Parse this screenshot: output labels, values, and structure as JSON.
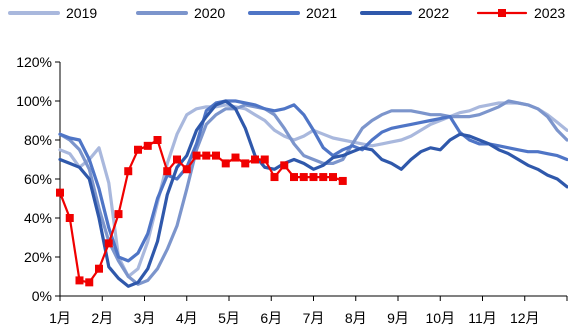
{
  "chart_data": {
    "type": "line",
    "title": "",
    "xlabel": "",
    "ylabel": "",
    "ylim": [
      0,
      120
    ],
    "y_tick_labels": [
      "0%",
      "20%",
      "40%",
      "60%",
      "80%",
      "100%",
      "120%"
    ],
    "y_tick_values": [
      0,
      20,
      40,
      60,
      80,
      100,
      120
    ],
    "x_tick_labels": [
      "1月",
      "2月",
      "3月",
      "4月",
      "5月",
      "6月",
      "7月",
      "8月",
      "9月",
      "10月",
      "11月",
      "12月"
    ],
    "x_unit": "week",
    "xlim": [
      1,
      53
    ],
    "legend_position": "top",
    "grid": false,
    "series": [
      {
        "name": "2019",
        "color": "#a9b8dd",
        "marker": "none",
        "points": [
          [
            1,
            75
          ],
          [
            2,
            73
          ],
          [
            3,
            66
          ],
          [
            4,
            70
          ],
          [
            5,
            76
          ],
          [
            6,
            58
          ],
          [
            7,
            20
          ],
          [
            8,
            10
          ],
          [
            9,
            14
          ],
          [
            10,
            28
          ],
          [
            11,
            48
          ],
          [
            12,
            68
          ],
          [
            13,
            83
          ],
          [
            14,
            93
          ],
          [
            15,
            96
          ],
          [
            16,
            97
          ],
          [
            17,
            97
          ],
          [
            18,
            98
          ],
          [
            19,
            97
          ],
          [
            20,
            96
          ],
          [
            21,
            93
          ],
          [
            22,
            90
          ],
          [
            23,
            85
          ],
          [
            24,
            82
          ],
          [
            25,
            80
          ],
          [
            26,
            82
          ],
          [
            27,
            85
          ],
          [
            28,
            83
          ],
          [
            29,
            81
          ],
          [
            30,
            80
          ],
          [
            31,
            79
          ],
          [
            32,
            78
          ],
          [
            33,
            77
          ],
          [
            34,
            78
          ],
          [
            35,
            79
          ],
          [
            36,
            80
          ],
          [
            37,
            82
          ],
          [
            38,
            85
          ],
          [
            39,
            88
          ],
          [
            40,
            90
          ],
          [
            41,
            92
          ],
          [
            42,
            94
          ],
          [
            43,
            95
          ],
          [
            44,
            97
          ],
          [
            45,
            98
          ],
          [
            46,
            99
          ],
          [
            47,
            99
          ],
          [
            48,
            99
          ],
          [
            49,
            98
          ],
          [
            50,
            96
          ],
          [
            51,
            93
          ],
          [
            52,
            89
          ],
          [
            53,
            85
          ]
        ]
      },
      {
        "name": "2020",
        "color": "#7c95cc",
        "marker": "none",
        "points": [
          [
            1,
            83
          ],
          [
            2,
            80
          ],
          [
            3,
            75
          ],
          [
            4,
            65
          ],
          [
            5,
            45
          ],
          [
            6,
            28
          ],
          [
            7,
            18
          ],
          [
            8,
            10
          ],
          [
            9,
            6
          ],
          [
            10,
            8
          ],
          [
            11,
            14
          ],
          [
            12,
            24
          ],
          [
            13,
            36
          ],
          [
            14,
            55
          ],
          [
            15,
            75
          ],
          [
            16,
            88
          ],
          [
            17,
            93
          ],
          [
            18,
            96
          ],
          [
            19,
            96
          ],
          [
            20,
            98
          ],
          [
            21,
            97
          ],
          [
            22,
            96
          ],
          [
            23,
            93
          ],
          [
            24,
            86
          ],
          [
            25,
            78
          ],
          [
            26,
            72
          ],
          [
            27,
            70
          ],
          [
            28,
            68
          ],
          [
            29,
            68
          ],
          [
            30,
            70
          ],
          [
            31,
            78
          ],
          [
            32,
            86
          ],
          [
            33,
            90
          ],
          [
            34,
            93
          ],
          [
            35,
            95
          ],
          [
            36,
            95
          ],
          [
            37,
            95
          ],
          [
            38,
            94
          ],
          [
            39,
            93
          ],
          [
            40,
            93
          ],
          [
            41,
            92
          ],
          [
            42,
            92
          ],
          [
            43,
            92
          ],
          [
            44,
            93
          ],
          [
            45,
            95
          ],
          [
            46,
            97
          ],
          [
            47,
            100
          ],
          [
            48,
            99
          ],
          [
            49,
            98
          ],
          [
            50,
            96
          ],
          [
            51,
            92
          ],
          [
            52,
            85
          ],
          [
            53,
            80
          ]
        ]
      },
      {
        "name": "2021",
        "color": "#4f75c6",
        "marker": "none",
        "points": [
          [
            1,
            83
          ],
          [
            2,
            81
          ],
          [
            3,
            80
          ],
          [
            4,
            70
          ],
          [
            5,
            55
          ],
          [
            6,
            35
          ],
          [
            7,
            20
          ],
          [
            8,
            18
          ],
          [
            9,
            22
          ],
          [
            10,
            32
          ],
          [
            11,
            50
          ],
          [
            12,
            62
          ],
          [
            13,
            60
          ],
          [
            14,
            66
          ],
          [
            15,
            78
          ],
          [
            16,
            95
          ],
          [
            17,
            99
          ],
          [
            18,
            100
          ],
          [
            19,
            100
          ],
          [
            20,
            99
          ],
          [
            21,
            98
          ],
          [
            22,
            96
          ],
          [
            23,
            95
          ],
          [
            24,
            96
          ],
          [
            25,
            98
          ],
          [
            26,
            93
          ],
          [
            27,
            85
          ],
          [
            28,
            76
          ],
          [
            29,
            72
          ],
          [
            30,
            75
          ],
          [
            31,
            77
          ],
          [
            32,
            75
          ],
          [
            33,
            80
          ],
          [
            34,
            84
          ],
          [
            35,
            86
          ],
          [
            36,
            87
          ],
          [
            37,
            88
          ],
          [
            38,
            89
          ],
          [
            39,
            90
          ],
          [
            40,
            91
          ],
          [
            41,
            92
          ],
          [
            42,
            84
          ],
          [
            43,
            80
          ],
          [
            44,
            78
          ],
          [
            45,
            78
          ],
          [
            46,
            77
          ],
          [
            47,
            76
          ],
          [
            48,
            75
          ],
          [
            49,
            74
          ],
          [
            50,
            74
          ],
          [
            51,
            73
          ],
          [
            52,
            72
          ],
          [
            53,
            70
          ]
        ]
      },
      {
        "name": "2022",
        "color": "#2f58ab",
        "marker": "none",
        "points": [
          [
            1,
            70
          ],
          [
            2,
            68
          ],
          [
            3,
            66
          ],
          [
            4,
            60
          ],
          [
            5,
            40
          ],
          [
            6,
            15
          ],
          [
            7,
            9
          ],
          [
            8,
            5
          ],
          [
            9,
            7
          ],
          [
            10,
            14
          ],
          [
            11,
            28
          ],
          [
            12,
            52
          ],
          [
            13,
            66
          ],
          [
            14,
            72
          ],
          [
            15,
            85
          ],
          [
            16,
            92
          ],
          [
            17,
            98
          ],
          [
            18,
            100
          ],
          [
            19,
            96
          ],
          [
            20,
            86
          ],
          [
            21,
            72
          ],
          [
            22,
            66
          ],
          [
            23,
            65
          ],
          [
            24,
            68
          ],
          [
            25,
            70
          ],
          [
            26,
            68
          ],
          [
            27,
            65
          ],
          [
            28,
            67
          ],
          [
            29,
            71
          ],
          [
            30,
            72
          ],
          [
            31,
            74
          ],
          [
            32,
            76
          ],
          [
            33,
            75
          ],
          [
            34,
            70
          ],
          [
            35,
            68
          ],
          [
            36,
            65
          ],
          [
            37,
            70
          ],
          [
            38,
            74
          ],
          [
            39,
            76
          ],
          [
            40,
            75
          ],
          [
            41,
            80
          ],
          [
            42,
            83
          ],
          [
            43,
            82
          ],
          [
            44,
            80
          ],
          [
            45,
            78
          ],
          [
            46,
            75
          ],
          [
            47,
            73
          ],
          [
            48,
            70
          ],
          [
            49,
            67
          ],
          [
            50,
            65
          ],
          [
            51,
            62
          ],
          [
            52,
            60
          ],
          [
            53,
            56
          ]
        ]
      },
      {
        "name": "2023",
        "color": "#f00000",
        "marker": "square",
        "points": [
          [
            1,
            53
          ],
          [
            2,
            40
          ],
          [
            3,
            8
          ],
          [
            4,
            7
          ],
          [
            5,
            14
          ],
          [
            6,
            27
          ],
          [
            7,
            42
          ],
          [
            8,
            64
          ],
          [
            9,
            75
          ],
          [
            10,
            77
          ],
          [
            11,
            80
          ],
          [
            12,
            64
          ],
          [
            13,
            70
          ],
          [
            14,
            65
          ],
          [
            15,
            72
          ],
          [
            16,
            72
          ],
          [
            17,
            72
          ],
          [
            18,
            68
          ],
          [
            19,
            71
          ],
          [
            20,
            68
          ],
          [
            21,
            70
          ],
          [
            22,
            70
          ],
          [
            23,
            61
          ],
          [
            24,
            67
          ],
          [
            25,
            61
          ],
          [
            26,
            61
          ],
          [
            27,
            61
          ],
          [
            28,
            61
          ],
          [
            29,
            61
          ],
          [
            30,
            59
          ]
        ]
      }
    ]
  }
}
